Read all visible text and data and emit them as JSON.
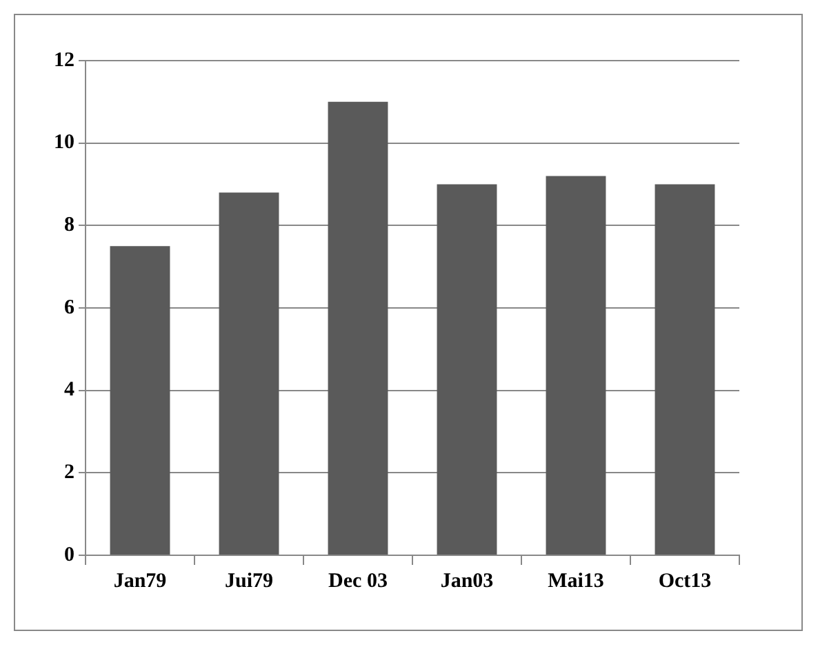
{
  "chart_data": {
    "type": "bar",
    "categories": [
      "Jan79",
      "Jui79",
      "Dec 03",
      "Jan03",
      "Mai13",
      "Oct13"
    ],
    "values": [
      7.5,
      8.8,
      11,
      9,
      9.2,
      9
    ],
    "color": "#5a5a5a",
    "ylim": [
      0,
      12
    ],
    "yticks": [
      0,
      2,
      4,
      6,
      8,
      10,
      12
    ],
    "grid": "y",
    "legend": false
  }
}
